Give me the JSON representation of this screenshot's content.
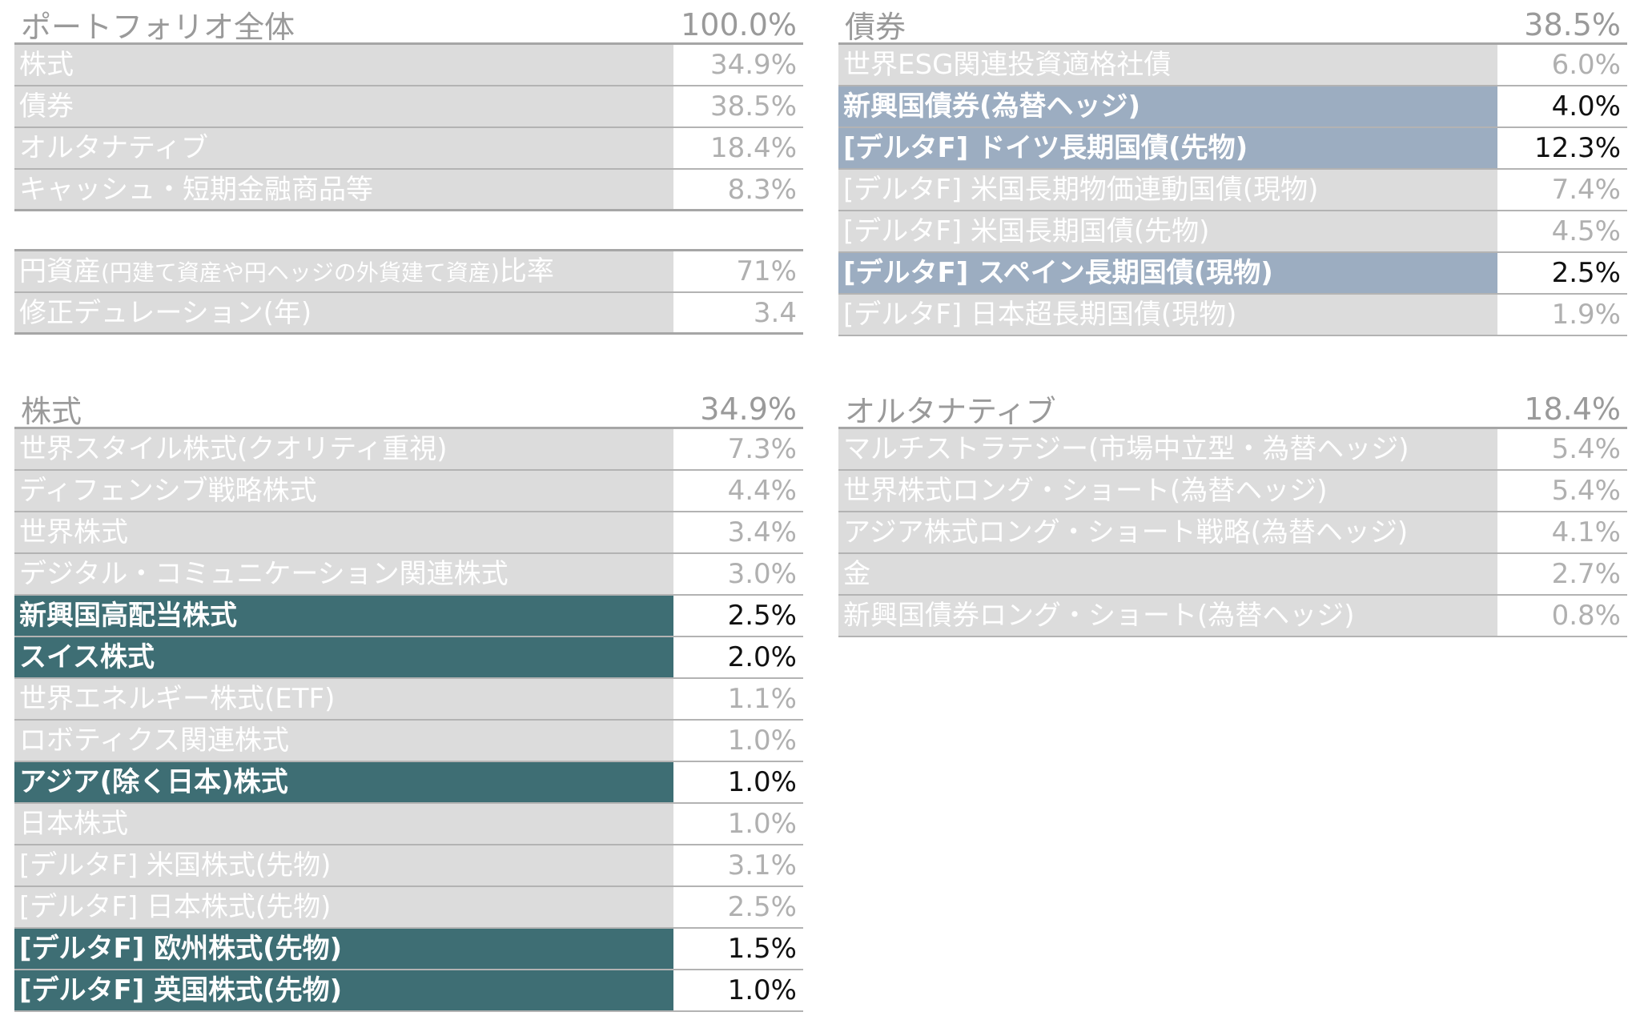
{
  "portfolio": {
    "title": "ポートフォリオ全体",
    "total": "100.0%",
    "rows": [
      {
        "label": "株式",
        "value": "34.9%"
      },
      {
        "label": "債券",
        "value": "38.5%"
      },
      {
        "label": "オルタナティブ",
        "value": "18.4%"
      },
      {
        "label": "キャッシュ・短期金融商品等",
        "value": "8.3%"
      }
    ],
    "yen_ratio": {
      "label": "円資産",
      "note": "(円建て資産や円ヘッジの外貨建て資産)",
      "suffix": "比率",
      "value": "71%"
    },
    "duration": {
      "label": "修正デュレーション(年)",
      "value": "3.4"
    }
  },
  "bonds": {
    "title": "債券",
    "total": "38.5%",
    "rows": [
      {
        "label": "世界ESG関連投資適格社債",
        "value": "6.0%"
      },
      {
        "label": "新興国債券(為替ヘッジ)",
        "value": "4.0%"
      },
      {
        "label": "[デルタF] ドイツ長期国債(先物)",
        "value": "12.3%"
      },
      {
        "label": "[デルタF] 米国長期物価連動国債(現物)",
        "value": "7.4%"
      },
      {
        "label": "[デルタF] 米国長期国債(先物)",
        "value": "4.5%"
      },
      {
        "label": "[デルタF] スペイン長期国債(現物)",
        "value": "2.5%"
      },
      {
        "label": "[デルタF] 日本超長期国債(現物)",
        "value": "1.9%"
      }
    ]
  },
  "equity": {
    "title": "株式",
    "total": "34.9%",
    "rows": [
      {
        "label": "世界スタイル株式(クオリティ重視)",
        "value": "7.3%"
      },
      {
        "label": "ディフェンシブ戦略株式",
        "value": "4.4%"
      },
      {
        "label": "世界株式",
        "value": "3.4%"
      },
      {
        "label": "デジタル・コミュニケーション関連株式",
        "value": "3.0%"
      },
      {
        "label": "新興国高配当株式",
        "value": "2.5%"
      },
      {
        "label": "スイス株式",
        "value": "2.0%"
      },
      {
        "label": "世界エネルギー株式(ETF)",
        "value": "1.1%"
      },
      {
        "label": "ロボティクス関連株式",
        "value": "1.0%"
      },
      {
        "label": "アジア(除く日本)株式",
        "value": "1.0%"
      },
      {
        "label": "日本株式",
        "value": "1.0%"
      },
      {
        "label": "[デルタF] 米国株式(先物)",
        "value": "3.1%"
      },
      {
        "label": "[デルタF] 日本株式(先物)",
        "value": "2.5%"
      },
      {
        "label": "[デルタF] 欧州株式(先物)",
        "value": "1.5%"
      },
      {
        "label": "[デルタF] 英国株式(先物)",
        "value": "1.0%"
      }
    ]
  },
  "alternative": {
    "title": "オルタナティブ",
    "total": "18.4%",
    "rows": [
      {
        "label": "マルチストラテジー(市場中立型・為替ヘッジ)",
        "value": "5.4%"
      },
      {
        "label": "世界株式ロング・ショート(為替ヘッジ)",
        "value": "5.4%"
      },
      {
        "label": "アジア株式ロング・ショート戦略(為替ヘッジ)",
        "value": "4.1%"
      },
      {
        "label": "金",
        "value": "2.7%"
      },
      {
        "label": "新興国債券ロング・ショート(為替ヘッジ)",
        "value": "0.8%"
      }
    ]
  },
  "colors": {
    "teal": "#3e6e74",
    "blue": "#9cadc1",
    "gray": "#dcdcdc"
  }
}
